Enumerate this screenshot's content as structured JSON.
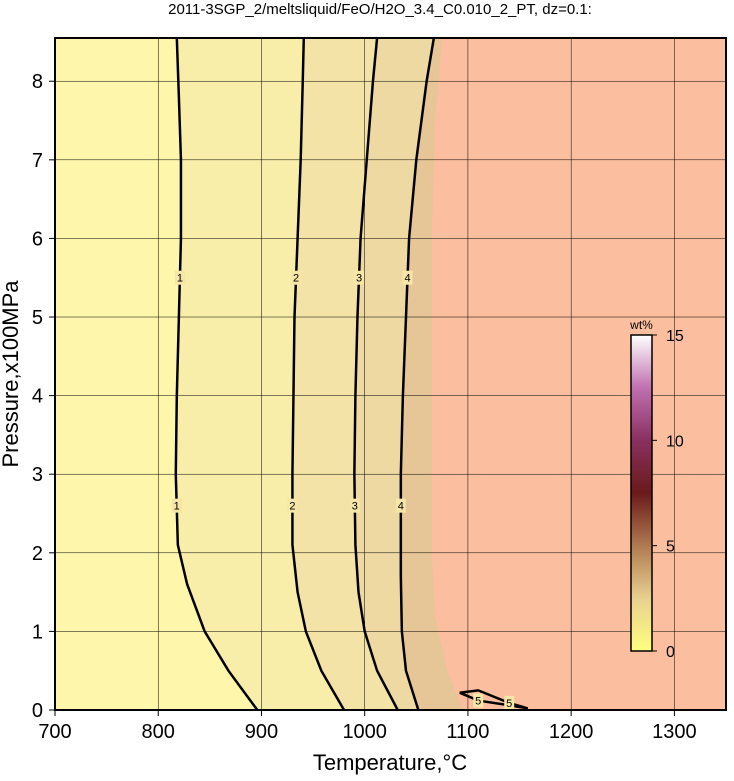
{
  "chart_data": {
    "type": "contour",
    "title": "2011-3SGP_2/meltsliquid/FeO/H2O_3.4_C0.010_2_PT, dz=0.1:",
    "x_label": "Temperature,°C",
    "y_label": "Pressure,x100MPa",
    "xlim": [
      700,
      1350
    ],
    "ylim": [
      0,
      8.55
    ],
    "xticks": [
      700,
      800,
      900,
      1000,
      1100,
      1200,
      1300
    ],
    "yticks": [
      0,
      1,
      2,
      3,
      4,
      5,
      6,
      7,
      8
    ],
    "grid": true,
    "background": "#fbbf9f",
    "regions": [
      {
        "color": "#e6c597",
        "x": [
          1095,
          1080,
          1068,
          1065,
          1065,
          1068,
          1075
        ],
        "y": [
          0,
          0.5,
          1.2,
          2,
          6,
          7.5,
          8.55
        ]
      },
      {
        "color": "#eed9a2",
        "x": [
          1052,
          1040,
          1036,
          1035,
          1035,
          1037,
          1040,
          1043,
          1050,
          1060,
          1067
        ],
        "y": [
          0,
          0.5,
          1,
          1.7,
          3,
          4,
          5,
          6,
          7,
          8,
          8.55
        ]
      },
      {
        "color": "#f4e3a6",
        "x": [
          1032,
          1012,
          1000,
          994,
          991,
          990,
          991,
          993,
          996,
          1002,
          1008,
          1012
        ],
        "y": [
          0,
          0.5,
          1,
          1.5,
          2.1,
          3,
          4,
          5,
          6,
          7,
          8,
          8.55
        ]
      },
      {
        "color": "#f8eda9",
        "x": [
          980,
          958,
          943,
          935,
          930,
          930,
          931,
          932,
          935,
          938,
          940,
          941
        ],
        "y": [
          0,
          0.5,
          1,
          1.5,
          2.1,
          3,
          4,
          5,
          6,
          7,
          8,
          8.55
        ]
      },
      {
        "color": "#fdf6ab",
        "x": [
          896,
          868,
          845,
          828,
          819,
          817,
          818,
          820,
          822,
          822,
          820,
          818
        ],
        "y": [
          0,
          0.5,
          1,
          1.6,
          2.1,
          3,
          4,
          5,
          6,
          7,
          7.8,
          8.55
        ]
      }
    ],
    "contours": [
      {
        "level": 1,
        "x": [
          896,
          868,
          845,
          828,
          819,
          817,
          818,
          820,
          822,
          822,
          820,
          818
        ],
        "y": [
          0,
          0.5,
          1,
          1.6,
          2.1,
          3,
          4,
          5,
          6,
          7,
          7.8,
          8.55
        ]
      },
      {
        "level": 2,
        "x": [
          980,
          958,
          943,
          935,
          930,
          930,
          931,
          932,
          935,
          938,
          940,
          941
        ],
        "y": [
          0,
          0.5,
          1,
          1.5,
          2.1,
          3,
          4,
          5,
          6,
          7,
          8,
          8.55
        ]
      },
      {
        "level": 3,
        "x": [
          1032,
          1012,
          1000,
          994,
          991,
          990,
          991,
          993,
          996,
          1002,
          1008,
          1012
        ],
        "y": [
          0,
          0.5,
          1,
          1.5,
          2.1,
          3,
          4,
          5,
          6,
          7,
          8,
          8.55
        ]
      },
      {
        "level": 4,
        "x": [
          1052,
          1040,
          1036,
          1035,
          1035,
          1037,
          1040,
          1043,
          1050,
          1060,
          1067
        ],
        "y": [
          0,
          0.5,
          1,
          1.7,
          3,
          4,
          5,
          6,
          7,
          8,
          8.55
        ]
      },
      {
        "level": 5,
        "x": [
          1092,
          1110,
          1140,
          1158,
          1140,
          1110,
          1092
        ],
        "y": [
          0.22,
          0.12,
          0.06,
          0.02,
          0.09,
          0.25,
          0.22
        ]
      }
    ],
    "colorbar": {
      "label": "wt%",
      "lim": [
        0,
        15
      ],
      "ticks": [
        0,
        5,
        10,
        15
      ],
      "colors": [
        "#ffff80",
        "#e8d090",
        "#b07a50",
        "#6a1a1a",
        "#8a3060",
        "#c070b0",
        "#ffffff"
      ]
    }
  }
}
